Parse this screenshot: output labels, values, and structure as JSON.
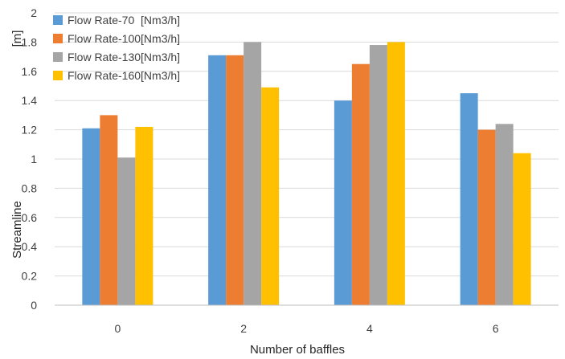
{
  "chart_data": {
    "type": "bar",
    "xlabel": "Number of baffles",
    "ylabel": "Streamline",
    "ylabel_unit": "[m]",
    "categories": [
      "0",
      "2",
      "4",
      "6"
    ],
    "ylim": [
      0,
      2
    ],
    "yticks": [
      0,
      0.2,
      0.4,
      0.6,
      0.8,
      1,
      1.2,
      1.4,
      1.6,
      1.8,
      2
    ],
    "ytick_labels": [
      "0",
      "0.2",
      "0.4",
      "0.6",
      "0.8",
      "1",
      "1.2",
      "1.4",
      "1.6",
      "1.8",
      "2"
    ],
    "grid": true,
    "legend_position": "top-left",
    "series": [
      {
        "name": "Flow Rate-70  [Nm3/h]",
        "color": "#5b9bd5",
        "values": [
          1.21,
          1.71,
          1.4,
          1.45
        ]
      },
      {
        "name": "Flow Rate-100[Nm3/h]",
        "color": "#ed7d31",
        "values": [
          1.3,
          1.71,
          1.65,
          1.2
        ]
      },
      {
        "name": "Flow Rate-130[Nm3/h]",
        "color": "#a5a5a5",
        "values": [
          1.01,
          1.8,
          1.78,
          1.24
        ]
      },
      {
        "name": "Flow Rate-160[Nm3/h]",
        "color": "#ffc000",
        "values": [
          1.22,
          1.49,
          1.8,
          1.04
        ]
      }
    ]
  }
}
